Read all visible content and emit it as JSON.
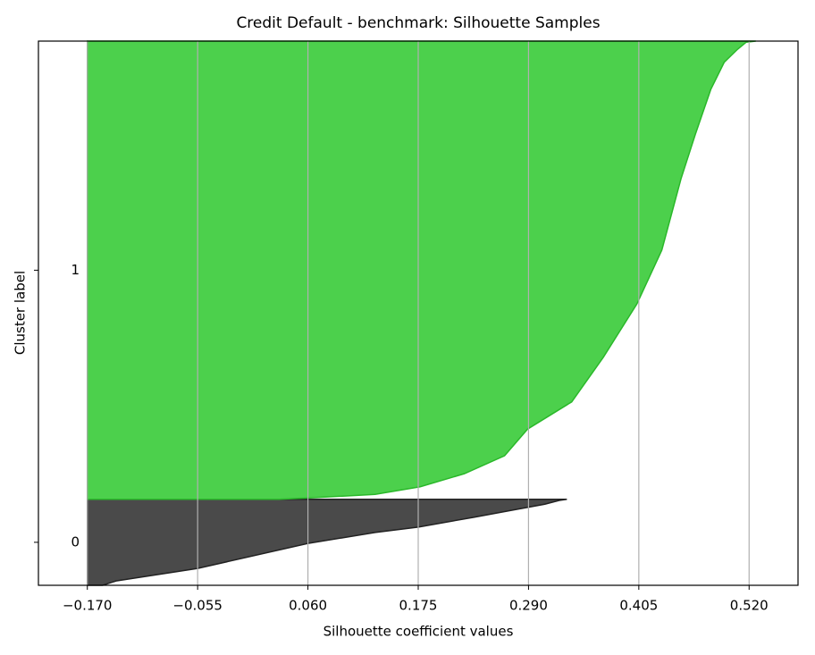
{
  "chart_data": {
    "type": "silhouette",
    "title": "Credit Default - benchmark: Silhouette Samples",
    "xlabel": "Silhouette coefficient values",
    "ylabel": "Cluster label",
    "xlim": [
      -0.221,
      0.571
    ],
    "ylim": [
      0,
      100
    ],
    "xticks": [
      {
        "value": -0.17,
        "label": "−0.170"
      },
      {
        "value": -0.055,
        "label": "−0.055"
      },
      {
        "value": 0.06,
        "label": "0.060"
      },
      {
        "value": 0.175,
        "label": "0.175"
      },
      {
        "value": 0.29,
        "label": "0.290"
      },
      {
        "value": 0.405,
        "label": "0.405"
      },
      {
        "value": 0.52,
        "label": "0.520"
      }
    ],
    "grid": true,
    "baseline": -0.17,
    "series": [
      {
        "name": "0",
        "color": "#4a4a4a",
        "edge_color": "#222222",
        "y": [
          0,
          0.8,
          3.1,
          7.7,
          9.7,
          10.7,
          12.5,
          14.0,
          14.9,
          15.6,
          15.8
        ],
        "values": [
          -0.154,
          -0.14,
          -0.055,
          0.06,
          0.13,
          0.175,
          0.233,
          0.279,
          0.307,
          0.322,
          0.33
        ]
      },
      {
        "name": "1",
        "color": "#4cd04c",
        "edge_color": "#2ab82a",
        "y": [
          15.8,
          16.1,
          16.7,
          18.1,
          20.5,
          23.8,
          28.7,
          33.7,
          41.9,
          51.7,
          61.6,
          74.7,
          82.9,
          91.1,
          96.1,
          98.5,
          99.8,
          100
        ],
        "values": [
          0.03,
          0.065,
          0.13,
          0.177,
          0.223,
          0.265,
          0.289,
          0.335,
          0.368,
          0.403,
          0.429,
          0.449,
          0.464,
          0.48,
          0.494,
          0.508,
          0.517,
          0.527
        ]
      }
    ]
  }
}
